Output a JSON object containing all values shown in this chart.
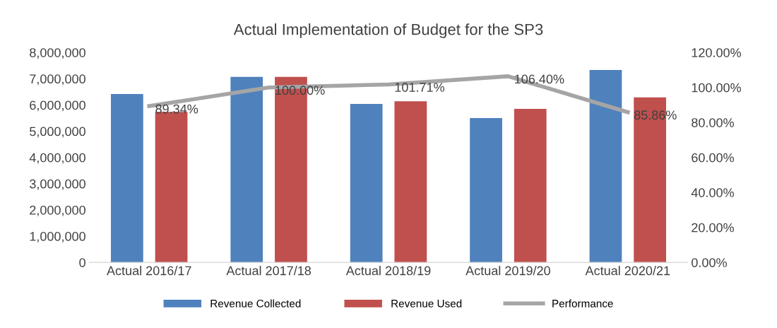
{
  "chart_data": {
    "type": "bar",
    "title": "Actual Implementation of Budget for the SP3",
    "categories": [
      "Actual 2016/17",
      "Actual 2017/18",
      "Actual 2018/19",
      "Actual 2019/20",
      "Actual 2020/21"
    ],
    "series": [
      {
        "name": "Revenue Collected",
        "color": "#4f81bd",
        "values": [
          6420000,
          7070000,
          6040000,
          5500000,
          7330000
        ]
      },
      {
        "name": "Revenue Used",
        "color": "#c0504d",
        "values": [
          5740000,
          7070000,
          6140000,
          5850000,
          6290000
        ]
      },
      {
        "name": "Performance",
        "type": "line",
        "axis": "y2",
        "color": "#a5a5a5",
        "values": [
          89.34,
          100.0,
          101.71,
          106.4,
          85.86
        ],
        "value_labels": [
          "89.34%",
          "100.00%",
          "101.71%",
          "106.40%",
          "85.86%"
        ]
      }
    ],
    "ylim": [
      0,
      8000000
    ],
    "yticks": [
      0,
      {
        "value": 1000000,
        "label": "1,000,000"
      },
      {
        "value": 2000000,
        "label": "2,000,000"
      },
      {
        "value": 3000000,
        "label": "3,000,000"
      },
      {
        "value": 4000000,
        "label": "4,000,000"
      },
      {
        "value": 5000000,
        "label": "5,000,000"
      },
      {
        "value": 6000000,
        "label": "6,000,000"
      },
      {
        "value": 7000000,
        "label": "7,000,000"
      },
      {
        "value": 8000000,
        "label": "8,000,000"
      }
    ],
    "y2lim": [
      0,
      120
    ],
    "y2ticks": [
      {
        "value": 0,
        "label": "0.00%"
      },
      {
        "value": 20,
        "label": "20.00%"
      },
      {
        "value": 40,
        "label": "40.00%"
      },
      {
        "value": 60,
        "label": "60.00%"
      },
      {
        "value": 80,
        "label": "80.00%"
      },
      {
        "value": 100,
        "label": "100.00%"
      },
      {
        "value": 120,
        "label": "120.00%"
      }
    ],
    "legend": "bottom",
    "grid": false
  }
}
